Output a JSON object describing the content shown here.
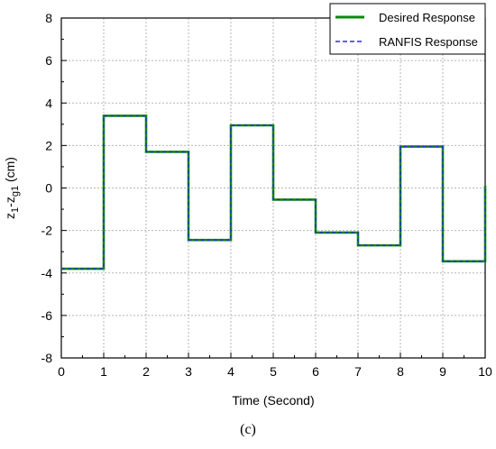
{
  "chart_data": {
    "type": "line",
    "xlabel": "Time (Second)",
    "ylabel": "z₁-zᵍ₁ (cm)",
    "ylabel_parts": {
      "a": "z",
      "a_sub": "1",
      "dash": "-",
      "b": "z",
      "b_sub": "g1",
      "unit": " (cm)"
    },
    "xlim": [
      0,
      10
    ],
    "ylim": [
      -8,
      8
    ],
    "xticks": [
      0,
      1,
      2,
      3,
      4,
      5,
      6,
      7,
      8,
      9,
      10
    ],
    "yticks": [
      -8,
      -6,
      -4,
      -2,
      0,
      2,
      4,
      6,
      8
    ],
    "grid": true,
    "legend_position": "top-right",
    "series": [
      {
        "name": "Desired Response",
        "color": "#0a8a0a",
        "style": "solid",
        "x": [
          0,
          1,
          1,
          2,
          2,
          3,
          3,
          4,
          4,
          5,
          5,
          6,
          6,
          7,
          7,
          8,
          8,
          9,
          9,
          10,
          10
        ],
        "y": [
          -3.8,
          -3.8,
          3.4,
          3.4,
          1.7,
          1.7,
          -2.45,
          -2.45,
          2.95,
          2.95,
          -0.55,
          -0.55,
          -2.1,
          -2.1,
          -2.7,
          -2.7,
          1.95,
          1.95,
          -3.45,
          -3.45,
          0.1
        ]
      },
      {
        "name": "RANFIS Response",
        "color": "#2b2bd6",
        "style": "dashed",
        "x": [
          0,
          1,
          1,
          2,
          2,
          3,
          3,
          4,
          4,
          5,
          5,
          6,
          6,
          7,
          7,
          8,
          8,
          9,
          9,
          10,
          10
        ],
        "y": [
          -3.8,
          -3.8,
          3.4,
          3.4,
          1.7,
          1.7,
          -2.45,
          -2.45,
          2.95,
          2.95,
          -0.55,
          -0.55,
          -2.1,
          -2.1,
          -2.7,
          -2.7,
          1.95,
          1.95,
          -3.45,
          -3.45,
          0.1
        ]
      }
    ]
  },
  "caption": "(c)"
}
